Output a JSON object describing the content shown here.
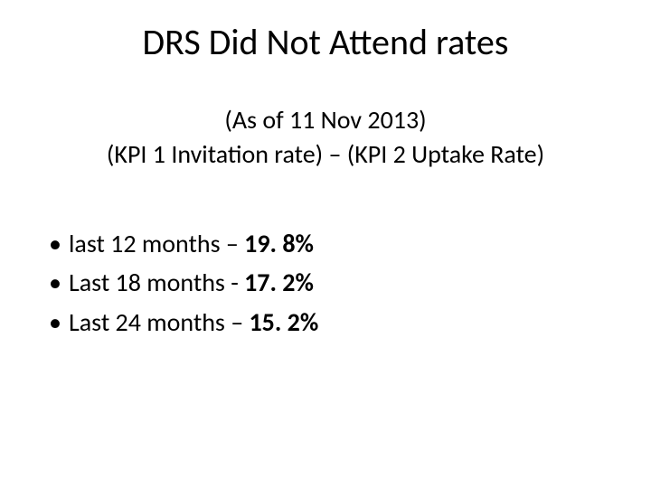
{
  "title": "DRS Did Not Attend rates",
  "subtitle_line1": "(As of 11 Nov 2013)",
  "subtitle_line2": "(KPI 1 Invitation rate) – (KPI 2 Uptake Rate)",
  "bullets": [
    {
      "prefix": "last 12 months –  ",
      "value": "19. 8%"
    },
    {
      "prefix": "Last 18 months - ",
      "value": "17. 2%"
    },
    {
      "prefix": "Last 24 months – ",
      "value": "15. 2%"
    }
  ],
  "style": {
    "background_color": "#ffffff",
    "text_color": "#000000",
    "title_fontsize": 40,
    "subtitle_fontsize": 28,
    "body_fontsize": 28,
    "font_family": "Calibri"
  }
}
